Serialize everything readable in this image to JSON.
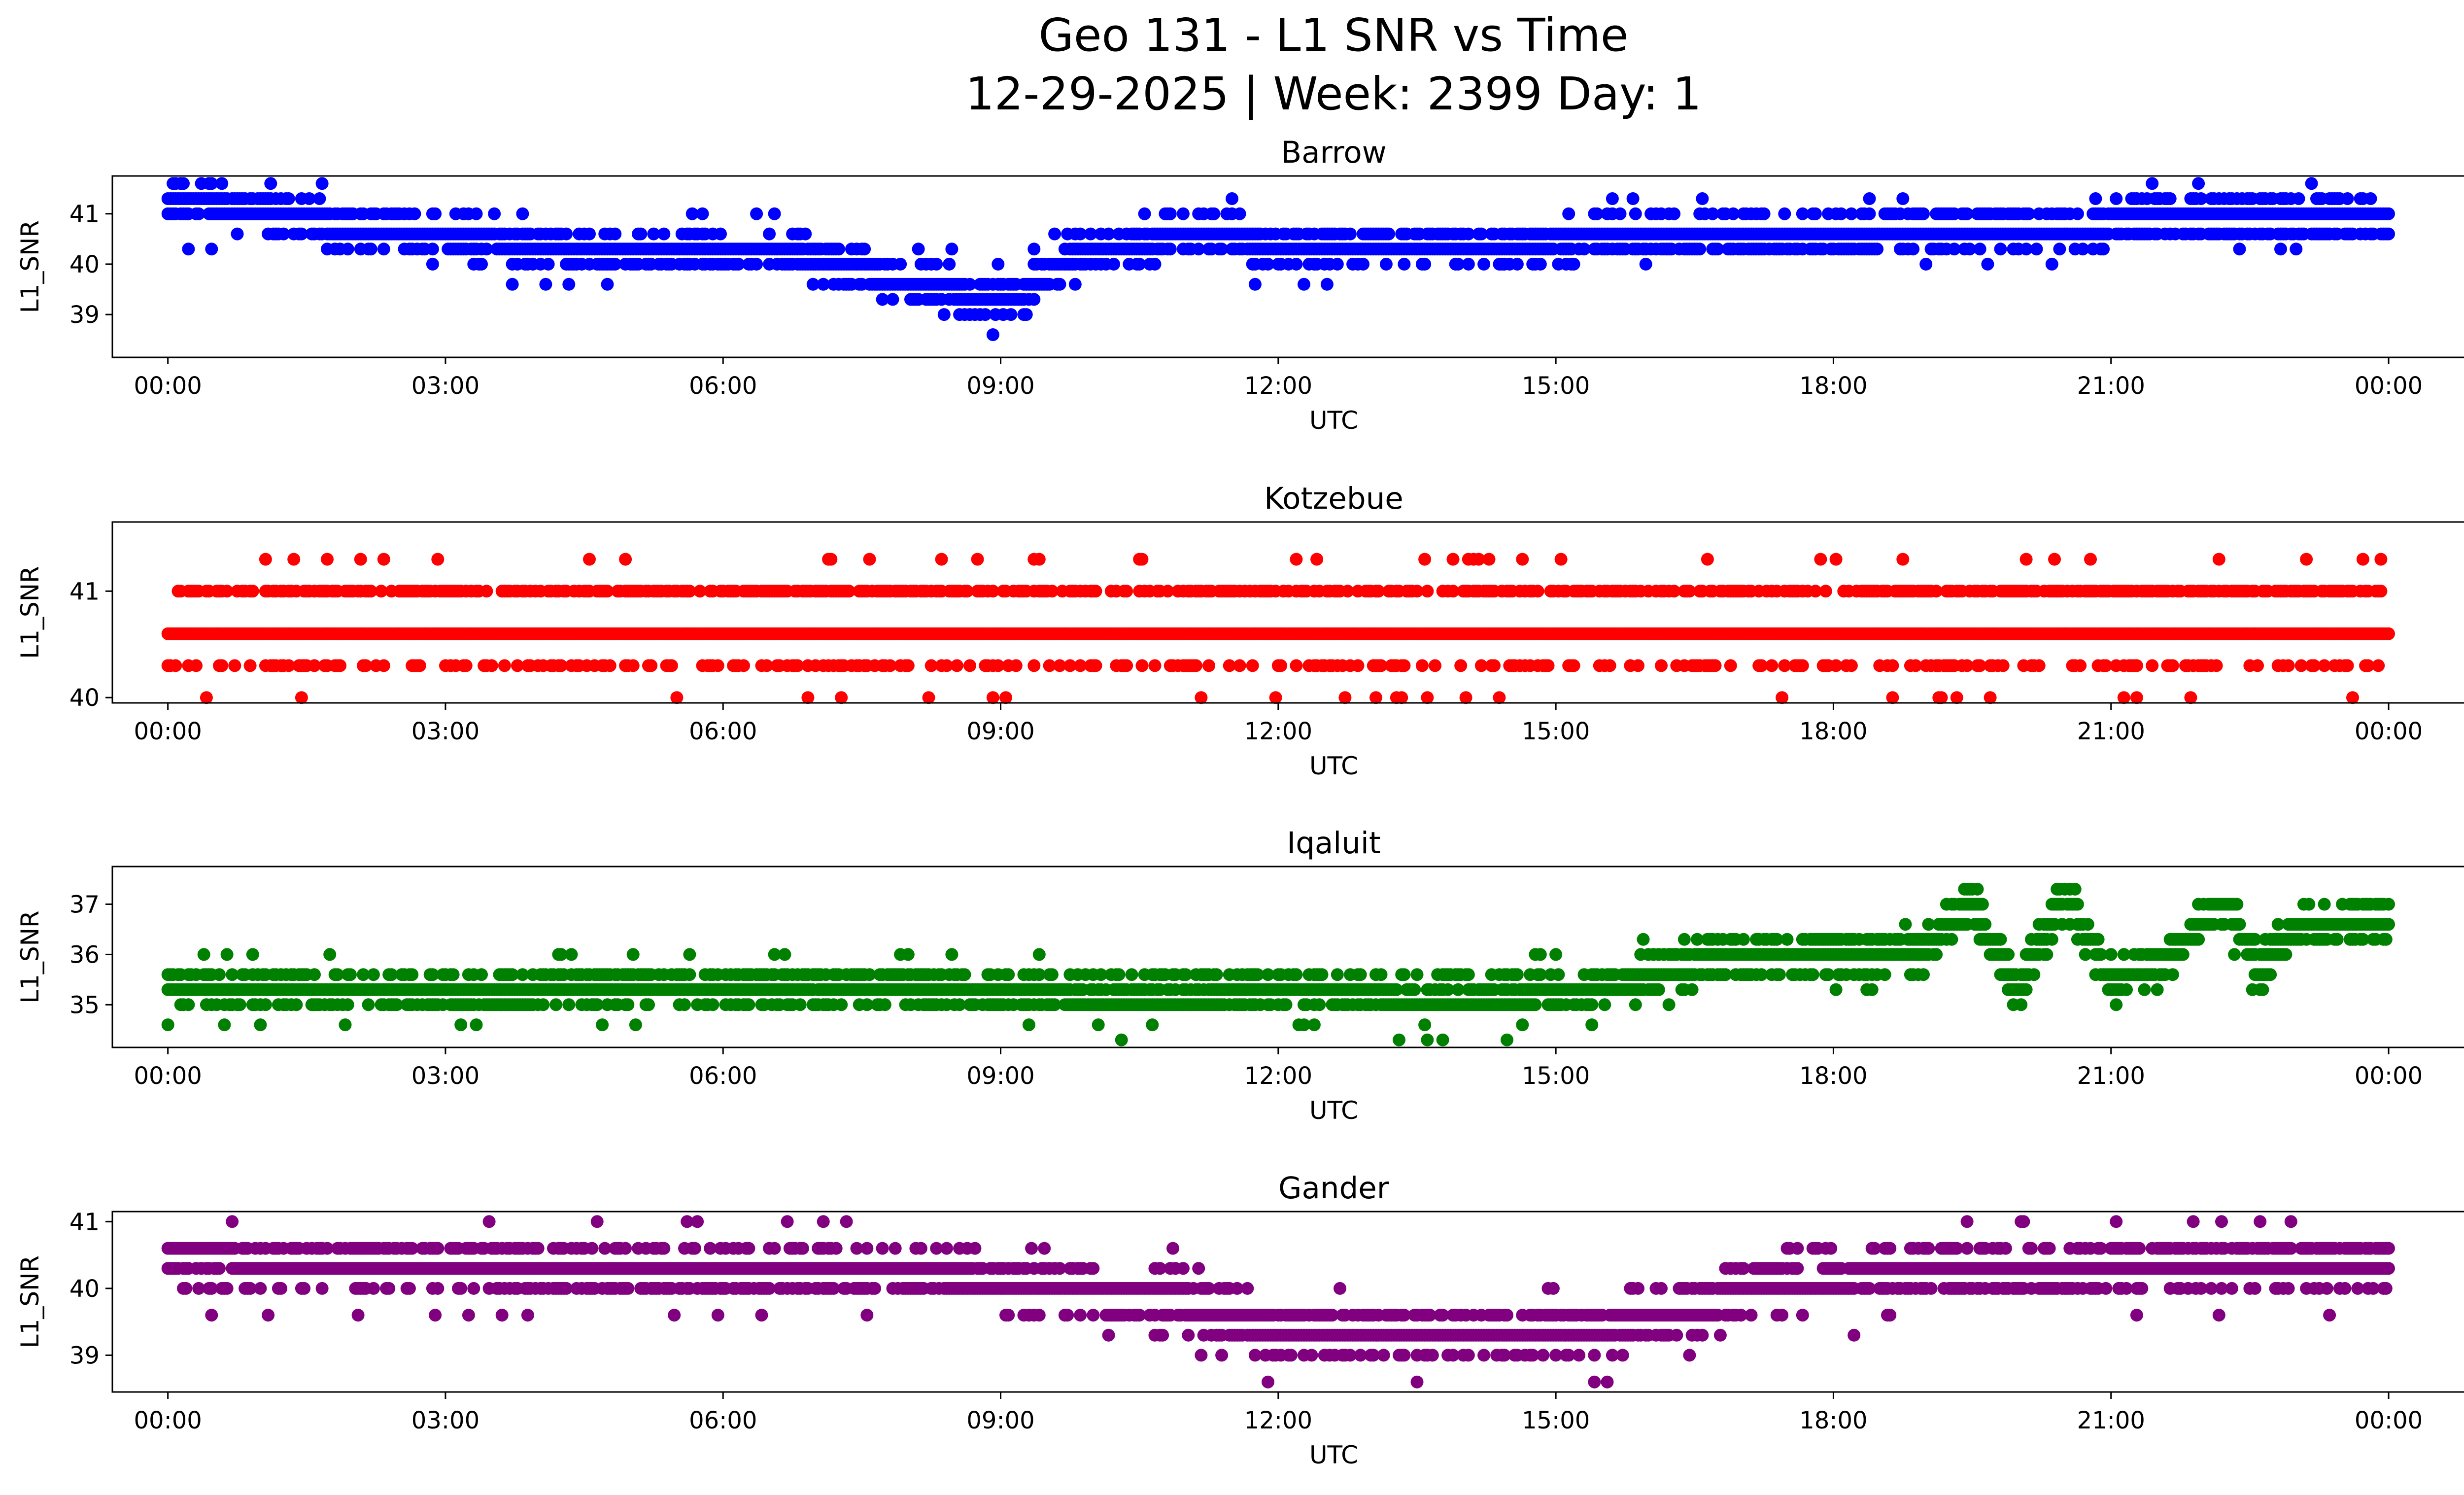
{
  "figure": {
    "title_line1": "Geo 131 - L1 SNR vs Time",
    "title_line2": "12-29-2025 | Week: 2399 Day: 1"
  },
  "chart_data": [
    {
      "type": "scatter",
      "title": "Barrow",
      "xlabel": "UTC",
      "ylabel": "L1_SNR",
      "color": "#0000ff",
      "xlim": [
        -0.6,
        25.8
      ],
      "ylim": [
        38.15,
        41.75
      ],
      "yticks": [
        39,
        40,
        41
      ],
      "xticks": [
        "00:00",
        "03:00",
        "06:00",
        "09:00",
        "12:00",
        "15:00",
        "18:00",
        "21:00",
        "00:00"
      ],
      "seed": 11,
      "density": 9,
      "levels": [
        38.3,
        38.6,
        39.0,
        39.3,
        39.6,
        40.0,
        40.3,
        40.6,
        41.0,
        41.3,
        41.6
      ],
      "series_anchors": [
        [
          0,
          41.3
        ],
        [
          0.6,
          41.1
        ],
        [
          1.7,
          40.8
        ],
        [
          2.8,
          40.6
        ],
        [
          3.8,
          40.4
        ],
        [
          4.8,
          40.2
        ],
        [
          6.5,
          40.3
        ],
        [
          7.2,
          40.0
        ],
        [
          8.0,
          39.6
        ],
        [
          9.0,
          39.3
        ],
        [
          9.3,
          39.5
        ],
        [
          9.8,
          40.2
        ],
        [
          10.5,
          40.4
        ],
        [
          11.3,
          40.7
        ],
        [
          12.0,
          40.3
        ],
        [
          13.5,
          40.35
        ],
        [
          15.0,
          40.45
        ],
        [
          16.0,
          40.6
        ],
        [
          18.0,
          40.6
        ],
        [
          19.0,
          40.7
        ],
        [
          21.0,
          40.8
        ],
        [
          24.0,
          40.85
        ]
      ]
    },
    {
      "type": "scatter",
      "title": "Kotzebue",
      "xlabel": "UTC",
      "ylabel": "L1_SNR",
      "color": "#ff0000",
      "xlim": [
        -0.6,
        25.8
      ],
      "ylim": [
        39.95,
        41.65
      ],
      "yticks": [
        40,
        41
      ],
      "xticks": [
        "00:00",
        "03:00",
        "06:00",
        "09:00",
        "12:00",
        "15:00",
        "18:00",
        "21:00",
        "00:00"
      ],
      "seed": 23,
      "density": 9,
      "levels": [
        40.0,
        40.3,
        40.6,
        41.0,
        41.3,
        41.6
      ],
      "series_anchors": [
        [
          0,
          40.8
        ],
        [
          24.0,
          40.8
        ]
      ]
    },
    {
      "type": "scatter",
      "title": "Iqaluit",
      "xlabel": "UTC",
      "ylabel": "L1_SNR",
      "color": "#008000",
      "xlim": [
        -0.6,
        25.8
      ],
      "ylim": [
        34.15,
        37.75
      ],
      "yticks": [
        35,
        36,
        37
      ],
      "xticks": [
        "00:00",
        "03:00",
        "06:00",
        "09:00",
        "12:00",
        "15:00",
        "18:00",
        "21:00",
        "00:00"
      ],
      "seed": 37,
      "density": 9,
      "levels": [
        34.3,
        34.6,
        35.0,
        35.3,
        35.6,
        36.0,
        36.3,
        36.6,
        37.0,
        37.3,
        37.6
      ],
      "series_anchors": [
        [
          0,
          35.4
        ],
        [
          3.0,
          35.2
        ],
        [
          5.0,
          35.4
        ],
        [
          7.0,
          35.45
        ],
        [
          9.0,
          35.2
        ],
        [
          10.5,
          35.1
        ],
        [
          12.0,
          35.2
        ],
        [
          14.5,
          35.1
        ],
        [
          15.5,
          35.3
        ],
        [
          16.5,
          35.8
        ],
        [
          17.0,
          36.1
        ],
        [
          19.0,
          36.1
        ],
        [
          19.5,
          37.0
        ],
        [
          20.0,
          35.3
        ],
        [
          20.5,
          37.2
        ],
        [
          21.0,
          35.5
        ],
        [
          21.6,
          35.9
        ],
        [
          22.2,
          37.1
        ],
        [
          22.6,
          35.7
        ],
        [
          23.0,
          36.5
        ],
        [
          24.0,
          36.8
        ]
      ]
    },
    {
      "type": "scatter",
      "title": "Gander",
      "xlabel": "UTC",
      "ylabel": "L1_SNR",
      "color": "#800080",
      "xlim": [
        -0.6,
        25.8
      ],
      "ylim": [
        38.45,
        41.15
      ],
      "yticks": [
        39,
        40,
        41
      ],
      "xticks": [
        "00:00",
        "03:00",
        "06:00",
        "09:00",
        "12:00",
        "15:00",
        "18:00",
        "21:00",
        "00:00"
      ],
      "seed": 53,
      "density": 9,
      "levels": [
        38.6,
        39.0,
        39.3,
        39.6,
        40.0,
        40.3,
        40.6,
        41.0
      ],
      "series_anchors": [
        [
          0,
          40.5
        ],
        [
          2.0,
          40.35
        ],
        [
          4.0,
          40.3
        ],
        [
          7.0,
          40.3
        ],
        [
          9.0,
          40.1
        ],
        [
          11.0,
          39.8
        ],
        [
          12.0,
          39.4
        ],
        [
          15.0,
          39.3
        ],
        [
          16.5,
          39.7
        ],
        [
          17.5,
          40.1
        ],
        [
          19.0,
          40.2
        ],
        [
          21.0,
          40.3
        ],
        [
          24.0,
          40.4
        ]
      ]
    }
  ]
}
